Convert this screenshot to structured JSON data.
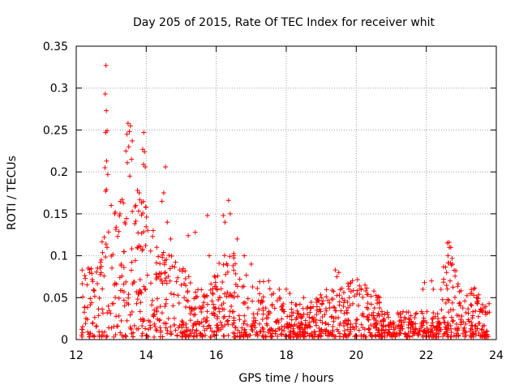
{
  "chart_data": {
    "type": "scatter",
    "title": "Day 205 of 2015, Rate Of TEC Index for receiver whit",
    "xlabel": "GPS time / hours",
    "ylabel": "ROTI / TECUs",
    "xlim": [
      12,
      24
    ],
    "ylim": [
      0,
      0.35
    ],
    "xticks": [
      "12",
      "14",
      "16",
      "18",
      "20",
      "22",
      "24"
    ],
    "yticks": [
      "0",
      "0.05",
      "0.1",
      "0.15",
      "0.2",
      "0.25",
      "0.3",
      "0.35"
    ],
    "grid": true,
    "marker": "+",
    "color": "#ff0000",
    "series": [
      {
        "name": "ROTI",
        "points": [
          [
            12.85,
            0.327
          ],
          [
            12.83,
            0.293
          ],
          [
            12.86,
            0.273
          ],
          [
            12.88,
            0.249
          ],
          [
            12.84,
            0.247
          ],
          [
            12.87,
            0.213
          ],
          [
            12.82,
            0.205
          ],
          [
            12.9,
            0.197
          ],
          [
            12.86,
            0.179
          ],
          [
            12.84,
            0.177
          ],
          [
            13.48,
            0.258
          ],
          [
            13.55,
            0.255
          ],
          [
            13.52,
            0.248
          ],
          [
            13.45,
            0.245
          ],
          [
            13.6,
            0.237
          ],
          [
            13.5,
            0.23
          ],
          [
            13.42,
            0.225
          ],
          [
            13.58,
            0.215
          ],
          [
            13.46,
            0.211
          ],
          [
            13.53,
            0.195
          ],
          [
            13.93,
            0.247
          ],
          [
            13.9,
            0.227
          ],
          [
            13.95,
            0.224
          ],
          [
            13.97,
            0.206
          ],
          [
            13.92,
            0.209
          ],
          [
            14.55,
            0.206
          ],
          [
            13.75,
            0.178
          ],
          [
            13.8,
            0.175
          ],
          [
            14.5,
            0.175
          ],
          [
            14.45,
            0.165
          ],
          [
            16.35,
            0.166
          ],
          [
            16.2,
            0.148
          ],
          [
            15.75,
            0.148
          ],
          [
            16.25,
            0.14
          ],
          [
            16.4,
            0.15
          ],
          [
            15.4,
            0.128
          ],
          [
            15.2,
            0.124
          ],
          [
            14.6,
            0.14
          ],
          [
            14.7,
            0.12
          ],
          [
            13.1,
            0.15
          ],
          [
            13.25,
            0.15
          ],
          [
            13.0,
            0.16
          ],
          [
            13.7,
            0.16
          ],
          [
            14.2,
            0.13
          ],
          [
            14.3,
            0.11
          ],
          [
            16.6,
            0.12
          ],
          [
            16.8,
            0.1
          ],
          [
            17.0,
            0.09
          ],
          [
            16.5,
            0.1
          ],
          [
            15.8,
            0.1
          ],
          [
            22.65,
            0.116
          ],
          [
            22.7,
            0.11
          ],
          [
            22.62,
            0.1
          ],
          [
            22.75,
            0.09
          ],
          [
            22.58,
            0.08
          ],
          [
            22.68,
            0.07
          ],
          [
            19.4,
            0.083
          ],
          [
            19.5,
            0.08
          ],
          [
            19.45,
            0.075
          ],
          [
            20.25,
            0.065
          ],
          [
            21.95,
            0.068
          ],
          [
            21.9,
            0.06
          ],
          [
            23.35,
            0.06
          ],
          [
            23.3,
            0.055
          ],
          [
            23.45,
            0.05
          ],
          [
            23.1,
            0.046
          ],
          [
            22.15,
            0.07
          ],
          [
            22.2,
            0.06
          ],
          [
            18.0,
            0.06
          ],
          [
            18.1,
            0.055
          ],
          [
            19.0,
            0.05
          ],
          [
            20.6,
            0.05
          ],
          [
            21.2,
            0.03
          ],
          [
            21.5,
            0.025
          ],
          [
            17.5,
            0.07
          ],
          [
            17.8,
            0.06
          ],
          [
            18.5,
            0.05
          ],
          [
            19.8,
            0.05
          ],
          [
            20.9,
            0.03
          ],
          [
            23.7,
            0.03
          ]
        ]
      }
    ]
  }
}
